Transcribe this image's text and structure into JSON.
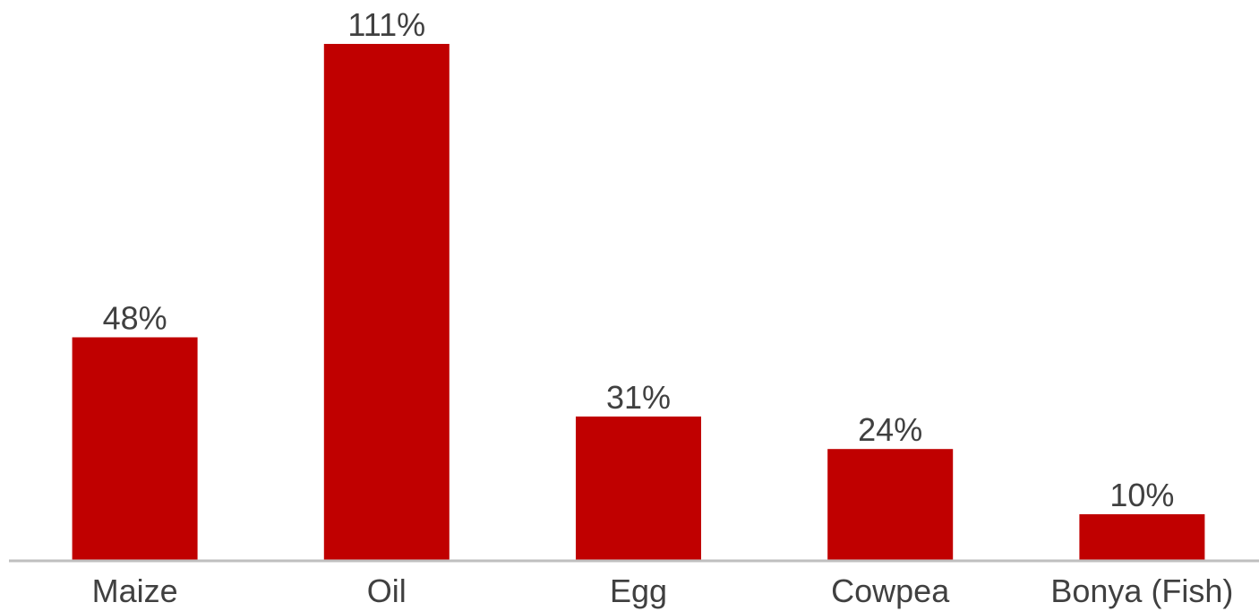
{
  "chart_data": {
    "type": "bar",
    "categories": [
      "Maize",
      "Oil",
      "Egg",
      "Cowpea",
      "Bonya (Fish)"
    ],
    "values": [
      48,
      111,
      31,
      24,
      10
    ],
    "value_labels": [
      "48%",
      "111%",
      "31%",
      "24%",
      "10%"
    ],
    "title": "",
    "xlabel": "",
    "ylabel": "",
    "ylim": [
      0,
      111
    ],
    "grid": false,
    "bar_color": "#c00000",
    "text_color": "#404040",
    "axis_color": "#bfbfbf"
  }
}
